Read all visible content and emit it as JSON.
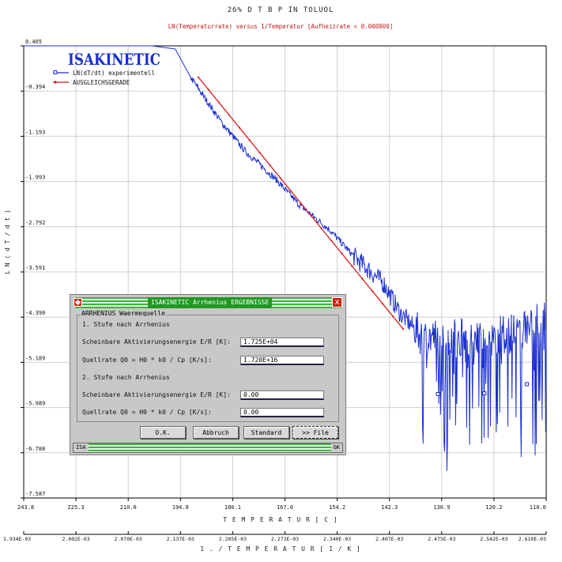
{
  "chart_data": {
    "type": "line",
    "title": "26% D T B P IN TOLUOL",
    "subtitle": "LN(Temperaturrate) versus 1/Temperatur [Aufheizrate =   0.000800]",
    "brand": "ISAKINETIC",
    "ylabel": "L N ( d T / d t )",
    "xlabel": "T E M P E R A T U R   [ C ]",
    "x2label": "1 . / T E M P E R A T U R   [ 1 / K ]",
    "y_ticks": [
      "0.405",
      "-0.394",
      "-1.193",
      "-1.993",
      "-2.792",
      "-3.591",
      "-4.390",
      "-5.189",
      "-5.989",
      "-6.788",
      "-7.587"
    ],
    "ylim": [
      -7.587,
      0.405
    ],
    "x_ticks_top": [
      "243.8",
      "225.3",
      "210.0",
      "194.8",
      "180.1",
      "167.0",
      "154.2",
      "142.3",
      "130.9",
      "120.2",
      "110.0"
    ],
    "x_ticks_bottom": [
      "1.934E-03",
      "2.002E-03",
      "2.070E-03",
      "2.137E-03",
      "2.205E-03",
      "2.273E-03",
      "2.340E-03",
      "2.407E-03",
      "2.475E-03",
      "2.542E-03",
      "2.610E-03"
    ],
    "xlim": [
      0.001934,
      0.00261
    ],
    "grid": true,
    "legend_position": "top-left",
    "series": [
      {
        "name": "LN(dT/dt) experimentell",
        "color": "#1a2fd0",
        "x": [
          0.001934,
          0.00203,
          0.0021,
          0.00213,
          0.00215,
          0.00217,
          0.00219,
          0.00222,
          0.00226,
          0.00229,
          0.00233,
          0.00236,
          0.0024,
          0.00242,
          0.00245,
          0.00248,
          0.00252,
          0.00256,
          0.00258,
          0.00261
        ],
        "y": [
          0.405,
          0.405,
          0.405,
          0.35,
          -0.15,
          -0.55,
          -0.95,
          -1.45,
          -1.95,
          -2.4,
          -2.85,
          -3.3,
          -3.8,
          -4.3,
          -4.75,
          -4.75,
          -4.75,
          -4.7,
          -4.6,
          -4.45
        ]
      },
      {
        "name": "AUSGLEICHSGERADE",
        "color": "#d81a1a",
        "x": [
          0.00216,
          0.002425
        ],
        "y": [
          -0.15,
          -4.6
        ]
      }
    ]
  },
  "dialog": {
    "title": "ISAKINETIC Arrhenius ERGEBNISSE",
    "close": "x",
    "group_label": "ARRHENIUS Waermequelle",
    "stage1_heading": "1. Stufe nach Arrhenius",
    "ea_label": "Scheinbare Aktivierungsenergie E/R [K]:",
    "ea1_value": "1.725E+04",
    "q_label": "Quellrate Q0 = H0 * k0 / Cp       [K/s]:",
    "q1_value": "1.720E+16",
    "stage2_heading": "2. Stufe nach Arrhenius",
    "ea2_value": "0.00",
    "q_label2": "Quellrate Q0 = H0 * k0 / Cp      [K/s]:",
    "q2_value": "0.00",
    "buttons": {
      "ok": "O.K.",
      "abort": "Abbruch",
      "standard": "Standard",
      "file": ">> File"
    },
    "status_left": "ISA",
    "status_right": "GK"
  }
}
